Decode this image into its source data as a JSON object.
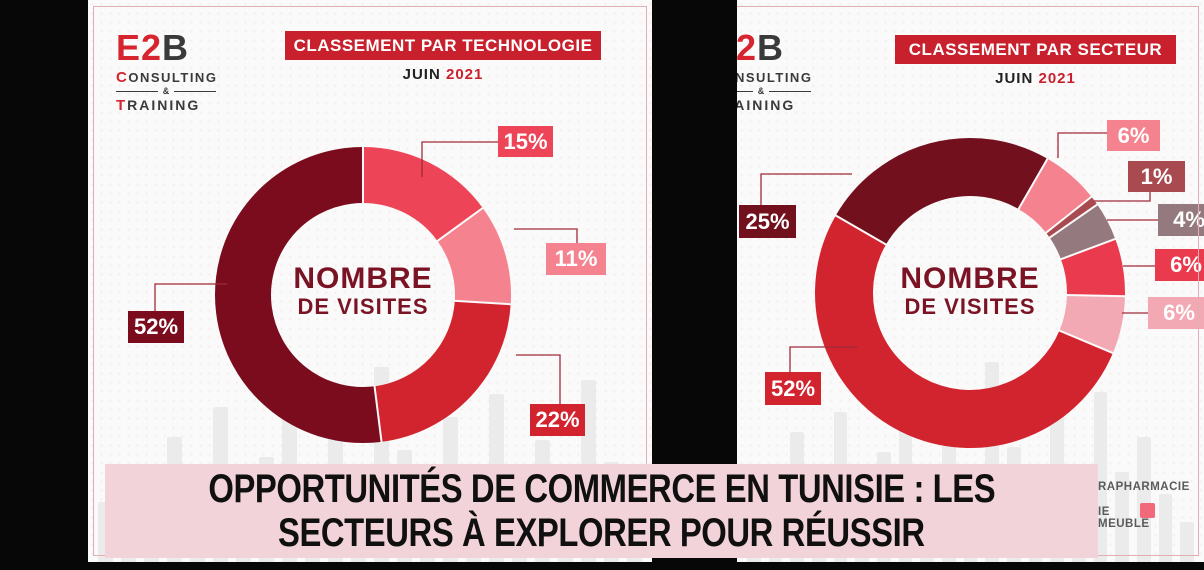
{
  "banner": {
    "line1": "OPPORTUNITÉS DE COMMERCE EN TUNISIE : LES",
    "line2": "SECTEURS À EXPLORER POUR RÉUSSIR"
  },
  "logo": {
    "e2": "E2",
    "b": "B",
    "consulting_initial": "C",
    "consulting_rest": "ONSULTING",
    "amp": "&",
    "training_initial": "T",
    "training_rest": "RAINING"
  },
  "left_panel": {
    "header": "CLASSEMENT PAR TECHNOLOGIE",
    "month": "JUIN",
    "year": "2021",
    "center_line1": "NOMBRE",
    "center_line2": "DE VISITES"
  },
  "right_panel": {
    "header": "CLASSEMENT PAR SECTEUR",
    "month": "JUIN",
    "year": "2021",
    "center_line1": "NOMBRE",
    "center_line2": "DE VISITES",
    "legend": {
      "row1_text": "RAPHARMACIE",
      "row2_text": "IE",
      "row2_item": "MEUBLE",
      "swatch_color": "#f1697a"
    }
  },
  "colors": {
    "header_red": "#c8202c",
    "banner_pink": "#f2d3d9",
    "maroon": "#7a0c1e",
    "red": "#d2242e",
    "crimson": "#ee4458",
    "pink": "#f4838f",
    "light_pink": "#f3a9b4",
    "gray_mauve": "#94797e",
    "dark_red_muted": "#a84a50"
  },
  "chart_data": [
    {
      "type": "pie",
      "variant": "donut",
      "title": "CLASSEMENT PAR TECHNOLOGIE",
      "subtitle": "JUIN 2021",
      "center_label": "NOMBRE DE VISITES",
      "start_angle_deg": 0,
      "direction": "clockwise",
      "segments": [
        {
          "label": "15%",
          "value": 15,
          "color": "#ee4458"
        },
        {
          "label": "11%",
          "value": 11,
          "color": "#f4838f"
        },
        {
          "label": "22%",
          "value": 22,
          "color": "#d2242e"
        },
        {
          "label": "52%",
          "value": 52,
          "color": "#7a0c1e"
        }
      ]
    },
    {
      "type": "pie",
      "variant": "donut",
      "title": "CLASSEMENT PAR SECTEUR",
      "subtitle": "JUIN 2021",
      "center_label": "NOMBRE DE VISITES",
      "start_angle_deg": -60,
      "direction": "clockwise",
      "segments": [
        {
          "label": "25%",
          "value": 25,
          "color": "#73101d"
        },
        {
          "label": "6%",
          "value": 6,
          "color": "#f5838f"
        },
        {
          "label": "1%",
          "value": 1,
          "color": "#a84a50"
        },
        {
          "label": "4%",
          "value": 4,
          "color": "#94797e"
        },
        {
          "label": "6%",
          "value": 6,
          "color": "#ea3b4e"
        },
        {
          "label": "6%",
          "value": 6,
          "color": "#f3a9b4"
        },
        {
          "label": "52%",
          "value": 52,
          "color": "#d2242e"
        }
      ]
    }
  ]
}
